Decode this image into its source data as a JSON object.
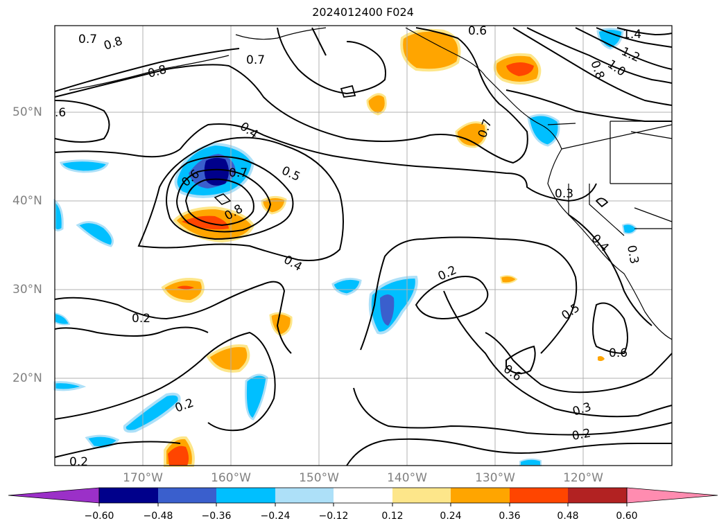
{
  "title": "2024012400 F024",
  "map": {
    "lat_labels": [
      "50°N",
      "40°N",
      "30°N",
      "20°N"
    ],
    "lon_labels": [
      "170°W",
      "160°W",
      "150°W",
      "140°W",
      "130°W",
      "120°W"
    ],
    "grid": true
  },
  "colorbar": {
    "ticks": [
      "−0.60",
      "−0.48",
      "−0.36",
      "−0.24",
      "−0.12",
      "0.12",
      "0.24",
      "0.36",
      "0.48",
      "0.60"
    ],
    "colors": [
      "#9b30c8",
      "#00008b",
      "#3a5fcd",
      "#00bfff",
      "#ade0f8",
      "#ffffff",
      "#fde68a",
      "#ffa500",
      "#ff4500",
      "#b22222",
      "#ff8cb0"
    ]
  },
  "contour_labels": [
    "0.7",
    "0.8",
    "0.8",
    "0.7",
    ".6",
    "0.4",
    "0.5",
    "0.6",
    "0.7",
    "0.8",
    "0.4",
    "0.2",
    "0.2",
    "0.2",
    "0.2",
    "0.6",
    "0.7",
    "0.3",
    "0.4",
    "0.3",
    "0.5",
    "0.6",
    "0.6",
    "0.3",
    "0.2",
    "1.4",
    "1.2",
    "1.0",
    "0.8"
  ]
}
